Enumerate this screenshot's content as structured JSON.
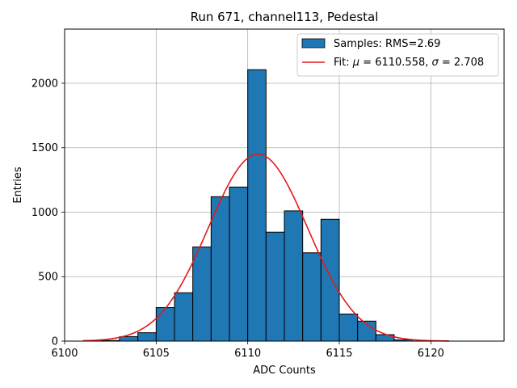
{
  "chart_data": {
    "type": "bar",
    "title": "Run 671, channel113, Pedestal",
    "xlabel": "ADC Counts",
    "ylabel": "Entries",
    "xlim": [
      6100,
      6124
    ],
    "ylim": [
      0,
      2420
    ],
    "x_ticks": [
      6100,
      6105,
      6110,
      6115,
      6120
    ],
    "y_ticks": [
      0,
      500,
      1000,
      1500,
      2000
    ],
    "grid": true,
    "legend_position": "top-right",
    "histogram": {
      "name": "Samples: RMS=2.69",
      "color": "#1f77b4",
      "bins": [
        {
          "x0": 6102,
          "x1": 6103,
          "value": 5
        },
        {
          "x0": 6103,
          "x1": 6104,
          "value": 35
        },
        {
          "x0": 6104,
          "x1": 6105,
          "value": 65
        },
        {
          "x0": 6105,
          "x1": 6106,
          "value": 260
        },
        {
          "x0": 6106,
          "x1": 6107,
          "value": 375
        },
        {
          "x0": 6107,
          "x1": 6108,
          "value": 730
        },
        {
          "x0": 6108,
          "x1": 6109,
          "value": 1120
        },
        {
          "x0": 6109,
          "x1": 6110,
          "value": 1195
        },
        {
          "x0": 6110,
          "x1": 6111,
          "value": 2105
        },
        {
          "x0": 6111,
          "x1": 6112,
          "value": 845
        },
        {
          "x0": 6112,
          "x1": 6113,
          "value": 1010
        },
        {
          "x0": 6113,
          "x1": 6114,
          "value": 685
        },
        {
          "x0": 6114,
          "x1": 6115,
          "value": 945
        },
        {
          "x0": 6115,
          "x1": 6116,
          "value": 210
        },
        {
          "x0": 6116,
          "x1": 6117,
          "value": 155
        },
        {
          "x0": 6117,
          "x1": 6118,
          "value": 50
        },
        {
          "x0": 6118,
          "x1": 6119,
          "value": 10
        }
      ]
    },
    "fit": {
      "name_prefix": "Fit: ",
      "mu_symbol": "μ",
      "mu_text": " = 6110.558, ",
      "sigma_symbol": "σ",
      "sigma_text": " = 2.708",
      "mu": 6110.558,
      "sigma": 2.708,
      "peak": 1450,
      "x_range": [
        6101,
        6121
      ],
      "color": "#e41a1c"
    }
  }
}
